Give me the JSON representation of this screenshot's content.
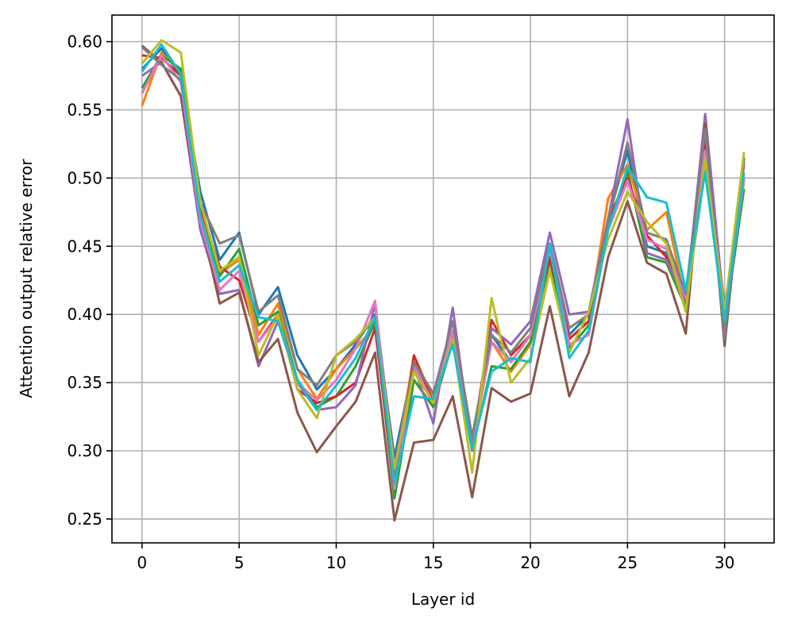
{
  "chart_data": {
    "type": "line",
    "title": "",
    "xlabel": "Layer id",
    "ylabel": "Attention output relative error",
    "xlim": [
      -1.55,
      32.55
    ],
    "ylim": [
      0.2325,
      0.6195
    ],
    "xticks": [
      0,
      5,
      10,
      15,
      20,
      25,
      30
    ],
    "yticks": [
      0.25,
      0.3,
      0.35,
      0.4,
      0.45,
      0.5,
      0.55,
      0.6
    ],
    "ytick_labels": [
      "0.25",
      "0.30",
      "0.35",
      "0.40",
      "0.45",
      "0.50",
      "0.55",
      "0.60"
    ],
    "xtick_labels": [
      "0",
      "5",
      "10",
      "15",
      "20",
      "25",
      "30"
    ],
    "grid": true,
    "x": [
      0,
      1,
      2,
      3,
      4,
      5,
      6,
      7,
      8,
      9,
      10,
      11,
      12,
      13,
      14,
      15,
      16,
      17,
      18,
      19,
      20,
      21,
      22,
      23,
      24,
      25,
      26,
      27,
      28,
      29,
      30,
      31
    ],
    "series": [
      {
        "color": "#1f77b4",
        "values": [
          0.58,
          0.595,
          0.575,
          0.49,
          0.44,
          0.46,
          0.4,
          0.42,
          0.37,
          0.345,
          0.36,
          0.378,
          0.4,
          0.295,
          0.365,
          0.34,
          0.385,
          0.31,
          0.385,
          0.365,
          0.385,
          0.45,
          0.385,
          0.4,
          0.47,
          0.52,
          0.45,
          0.445,
          0.415,
          0.525,
          0.405,
          0.5
        ]
      },
      {
        "color": "#ff7f0e",
        "values": [
          0.553,
          0.592,
          0.578,
          0.478,
          0.43,
          0.44,
          0.385,
          0.408,
          0.36,
          0.338,
          0.36,
          0.375,
          0.392,
          0.285,
          0.37,
          0.338,
          0.382,
          0.305,
          0.38,
          0.358,
          0.378,
          0.438,
          0.382,
          0.395,
          0.485,
          0.51,
          0.462,
          0.475,
          0.408,
          0.512,
          0.4,
          0.498
        ]
      },
      {
        "color": "#2ca02c",
        "values": [
          0.566,
          0.59,
          0.58,
          0.482,
          0.428,
          0.448,
          0.392,
          0.402,
          0.352,
          0.332,
          0.34,
          0.362,
          0.395,
          0.265,
          0.352,
          0.332,
          0.38,
          0.3,
          0.362,
          0.36,
          0.38,
          0.44,
          0.375,
          0.392,
          0.465,
          0.505,
          0.442,
          0.438,
          0.405,
          0.508,
          0.392,
          0.492
        ]
      },
      {
        "color": "#d62728",
        "values": [
          0.59,
          0.588,
          0.575,
          0.478,
          0.435,
          0.425,
          0.38,
          0.4,
          0.345,
          0.335,
          0.34,
          0.35,
          0.39,
          0.272,
          0.37,
          0.335,
          0.385,
          0.305,
          0.396,
          0.37,
          0.385,
          0.442,
          0.382,
          0.395,
          0.47,
          0.5,
          0.458,
          0.442,
          0.41,
          0.53,
          0.398,
          0.51
        ]
      },
      {
        "color": "#9467bd",
        "values": [
          0.575,
          0.585,
          0.56,
          0.462,
          0.415,
          0.418,
          0.362,
          0.395,
          0.35,
          0.33,
          0.332,
          0.348,
          0.408,
          0.288,
          0.362,
          0.32,
          0.405,
          0.3,
          0.39,
          0.378,
          0.395,
          0.46,
          0.4,
          0.402,
          0.47,
          0.543,
          0.445,
          0.44,
          0.41,
          0.547,
          0.4,
          0.515
        ]
      },
      {
        "color": "#8c564b",
        "values": [
          0.597,
          0.585,
          0.56,
          0.47,
          0.408,
          0.416,
          0.365,
          0.382,
          0.328,
          0.299,
          0.318,
          0.336,
          0.372,
          0.249,
          0.306,
          0.308,
          0.34,
          0.266,
          0.346,
          0.336,
          0.342,
          0.406,
          0.34,
          0.372,
          0.442,
          0.483,
          0.438,
          0.43,
          0.386,
          0.54,
          0.377,
          0.515
        ]
      },
      {
        "color": "#e377c2",
        "values": [
          0.562,
          0.59,
          0.57,
          0.468,
          0.418,
          0.432,
          0.38,
          0.398,
          0.35,
          0.337,
          0.352,
          0.375,
          0.41,
          0.272,
          0.362,
          0.335,
          0.388,
          0.302,
          0.38,
          0.365,
          0.385,
          0.448,
          0.378,
          0.385,
          0.462,
          0.498,
          0.455,
          0.448,
          0.412,
          0.52,
          0.395,
          0.5
        ]
      },
      {
        "color": "#7f7f7f",
        "values": [
          0.596,
          0.583,
          0.572,
          0.482,
          0.452,
          0.458,
          0.402,
          0.414,
          0.36,
          0.348,
          0.37,
          0.38,
          0.398,
          0.282,
          0.365,
          0.342,
          0.395,
          0.31,
          0.385,
          0.372,
          0.39,
          0.452,
          0.39,
          0.4,
          0.468,
          0.526,
          0.46,
          0.455,
          0.415,
          0.536,
          0.382,
          0.512
        ]
      },
      {
        "color": "#bcbd22",
        "values": [
          0.584,
          0.601,
          0.592,
          0.482,
          0.432,
          0.442,
          0.37,
          0.4,
          0.345,
          0.324,
          0.37,
          0.382,
          0.398,
          0.287,
          0.358,
          0.335,
          0.382,
          0.284,
          0.412,
          0.35,
          0.368,
          0.432,
          0.372,
          0.402,
          0.455,
          0.49,
          0.468,
          0.452,
          0.402,
          0.514,
          0.402,
          0.519
        ]
      },
      {
        "color": "#17becf",
        "values": [
          0.578,
          0.598,
          0.576,
          0.472,
          0.424,
          0.436,
          0.398,
          0.395,
          0.352,
          0.33,
          0.348,
          0.368,
          0.398,
          0.276,
          0.34,
          0.338,
          0.378,
          0.302,
          0.358,
          0.368,
          0.365,
          0.452,
          0.368,
          0.388,
          0.462,
          0.508,
          0.486,
          0.482,
          0.418,
          0.504,
          0.395,
          0.504
        ]
      }
    ]
  }
}
